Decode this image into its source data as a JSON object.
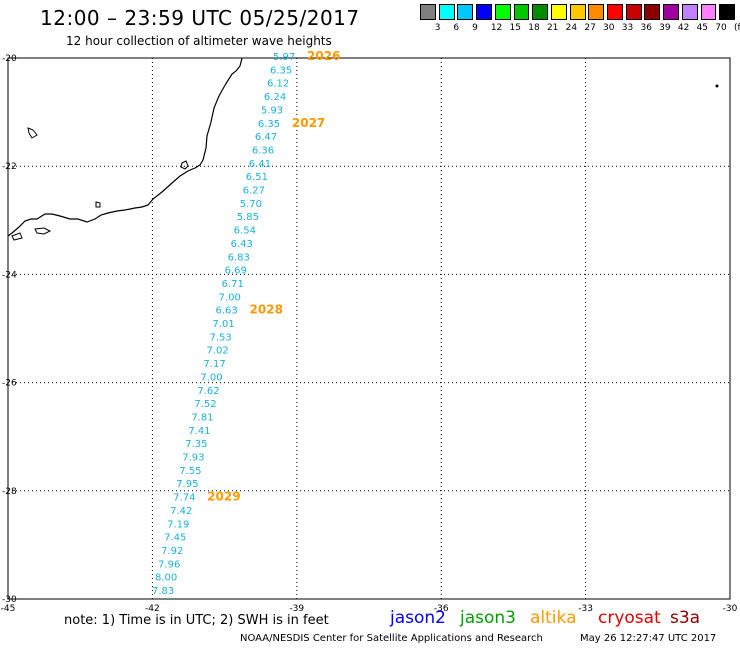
{
  "header": {
    "title": "12:00 – 23:59 UTC 05/25/2017",
    "subtitle": "12 hour collection of altimeter wave heights"
  },
  "legend": {
    "colors": [
      "#808080",
      "#00ffff",
      "#00c8ff",
      "#0000ff",
      "#00ff00",
      "#00c800",
      "#008c00",
      "#ffff00",
      "#ffc800",
      "#ff8c00",
      "#ff0000",
      "#c80000",
      "#8c0000",
      "#a000a0",
      "#c080ff",
      "#ff80ff",
      "#000000"
    ],
    "tick_labels": [
      "3",
      "6",
      "9",
      "12",
      "15",
      "18",
      "21",
      "24",
      "27",
      "30",
      "33",
      "36",
      "39",
      "42",
      "45",
      "70",
      "(ft)"
    ]
  },
  "axes": {
    "lon_labels": [
      "-45",
      "-42",
      "-39",
      "-36",
      "-33",
      "-30"
    ],
    "lat_labels": [
      "-20",
      "-22",
      "-24",
      "-26",
      "-28",
      "-30"
    ],
    "lon_range": [
      -45,
      -30
    ],
    "lat_range": [
      -30,
      -20
    ]
  },
  "track": {
    "color": "#1ab0e0",
    "wave_heights": [
      "5.97",
      "6.35",
      "6.12",
      "6.24",
      "5.93",
      "6.35",
      "6.47",
      "6.36",
      "6.41",
      "6.51",
      "6.27",
      "5.70",
      "5.85",
      "6.54",
      "6.43",
      "6.83",
      "6.69",
      "6.71",
      "7.00",
      "6.63",
      "7.01",
      "7.53",
      "7.02",
      "7.17",
      "7.00",
      "7.62",
      "7.52",
      "7.81",
      "7.41",
      "7.35",
      "7.93",
      "7.55",
      "7.95",
      "7.74",
      "7.42",
      "7.19",
      "7.45",
      "7.92",
      "7.96",
      "8.00",
      "7.83"
    ]
  },
  "time_labels": {
    "color": "#ff9900",
    "items": [
      {
        "text": "2026",
        "after_index": 0
      },
      {
        "text": "2027",
        "after_index": 5
      },
      {
        "text": "2028",
        "after_index": 19
      },
      {
        "text": "2029",
        "after_index": 33
      }
    ]
  },
  "footer": {
    "note": "note:  1) Time is in UTC;  2) SWH is in feet",
    "satellites": [
      {
        "name": "jason2",
        "color": "#0000ff"
      },
      {
        "name": "jason3",
        "color": "#00a000"
      },
      {
        "name": "altika",
        "color": "#ff9900"
      },
      {
        "name": "cryosat",
        "color": "#e00000"
      },
      {
        "name": "s3a",
        "color": "#8b0000"
      }
    ],
    "credit": "NOAA/NESDIS Center for Satellite Applications and Research",
    "timestamp": "May 26 12:27:47 UTC 2017"
  }
}
